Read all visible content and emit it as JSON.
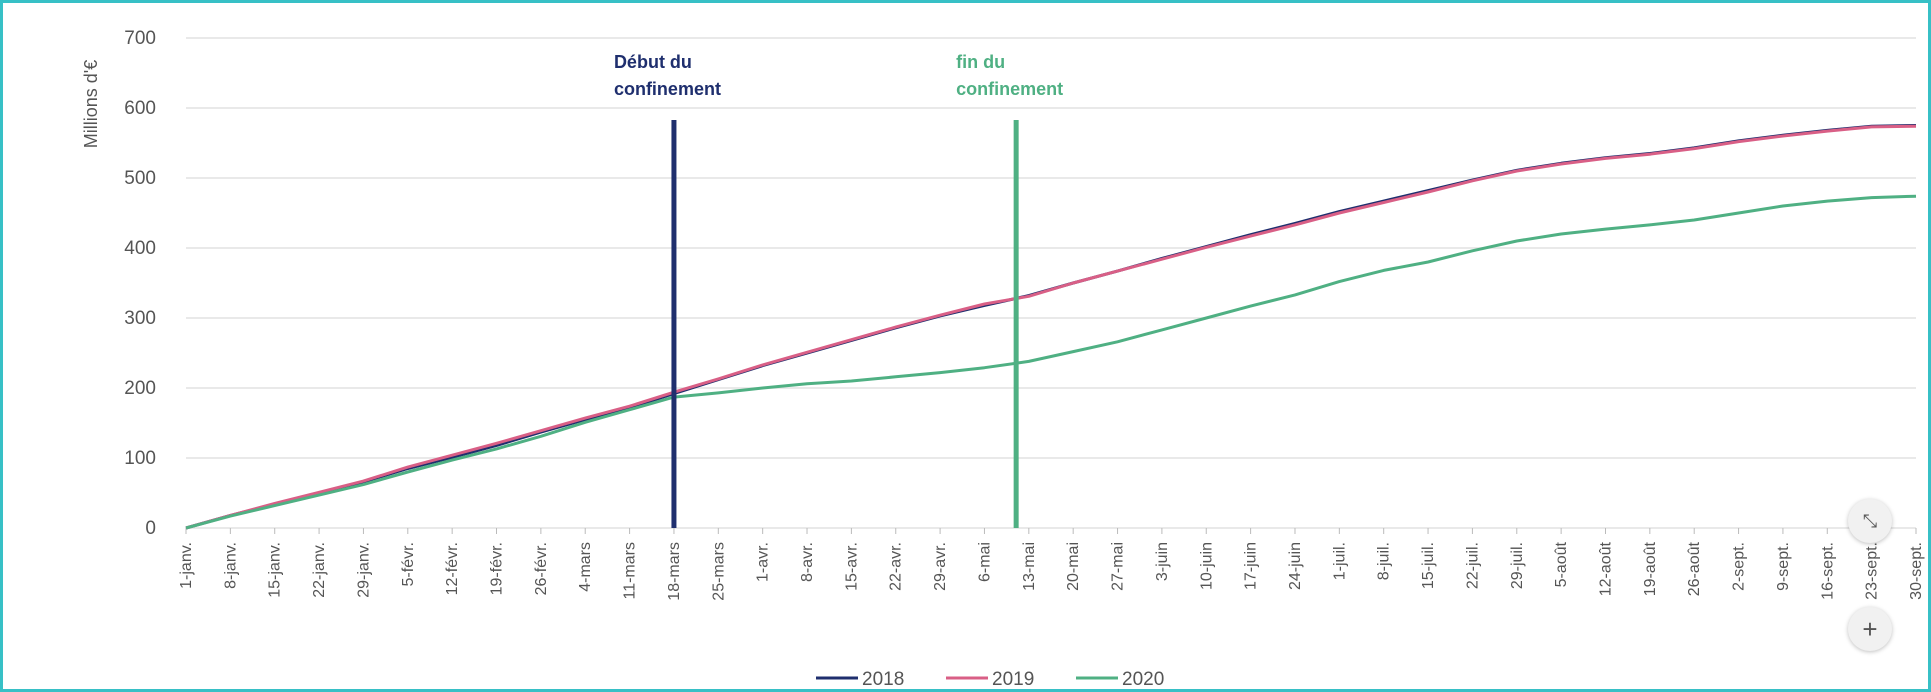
{
  "chart_data": {
    "type": "line",
    "ylabel": "Millions d'€",
    "ylim": [
      0,
      700
    ],
    "yticks": [
      0,
      100,
      200,
      300,
      400,
      500,
      600,
      700
    ],
    "grid": true,
    "legend_position": "bottom",
    "x_ticks": [
      "1-janv.",
      "8-janv.",
      "15-janv.",
      "22-janv.",
      "29-janv.",
      "5-févr.",
      "12-févr.",
      "19-févr.",
      "26-févr.",
      "4-mars",
      "11-mars",
      "18-mars",
      "25-mars",
      "1-avr.",
      "8-avr.",
      "15-avr.",
      "22-avr.",
      "29-avr.",
      "6-mai",
      "13-mai",
      "20-mai",
      "27-mai",
      "3-juin",
      "10-juin",
      "17-juin",
      "24-juin",
      "1-juil.",
      "8-juil.",
      "15-juil.",
      "22-juil.",
      "29-juil.",
      "5-août",
      "12-août",
      "19-août",
      "26-août",
      "2-sept.",
      "9-sept.",
      "16-sept.",
      "23-sept.",
      "30-sept."
    ],
    "series": [
      {
        "name": "2018",
        "color": "#1f2f6e",
        "values": [
          0,
          18,
          34,
          50,
          66,
          85,
          101,
          118,
          137,
          155,
          172,
          192,
          212,
          232,
          250,
          268,
          286,
          303,
          318,
          332,
          350,
          367,
          385,
          402,
          419,
          435,
          452,
          467,
          482,
          497,
          511,
          521,
          529,
          535,
          543,
          553,
          561,
          568,
          574,
          575
        ]
      },
      {
        "name": "2019",
        "color": "#d95f86",
        "values": [
          0,
          18,
          35,
          51,
          67,
          87,
          104,
          121,
          139,
          157,
          174,
          194,
          213,
          233,
          251,
          269,
          287,
          304,
          320,
          331,
          350,
          367,
          384,
          401,
          417,
          433,
          450,
          465,
          480,
          496,
          510,
          520,
          528,
          534,
          542,
          552,
          560,
          567,
          573,
          574
        ]
      },
      {
        "name": "2020",
        "color": "#4fb083",
        "values": [
          0,
          17,
          32,
          47,
          62,
          80,
          97,
          113,
          131,
          151,
          169,
          187,
          193,
          200,
          206,
          210,
          216,
          222,
          229,
          238,
          252,
          266,
          283,
          300,
          317,
          333,
          352,
          368,
          380,
          396,
          410,
          420,
          427,
          433,
          440,
          450,
          460,
          467,
          472,
          474
        ]
      }
    ],
    "annotations": [
      {
        "label_lines": [
          "Début du",
          "confinement"
        ],
        "x": "18-mars",
        "color": "#1f2f6e"
      },
      {
        "label_lines": [
          "fin du",
          "confinement"
        ],
        "x": "11-mai",
        "x_offset_days": 5,
        "color": "#4fb083"
      }
    ]
  },
  "controls": {
    "collapse_icon": "collapse-icon",
    "zoom_in_icon": "plus-icon",
    "zoom_in_label": "+"
  }
}
